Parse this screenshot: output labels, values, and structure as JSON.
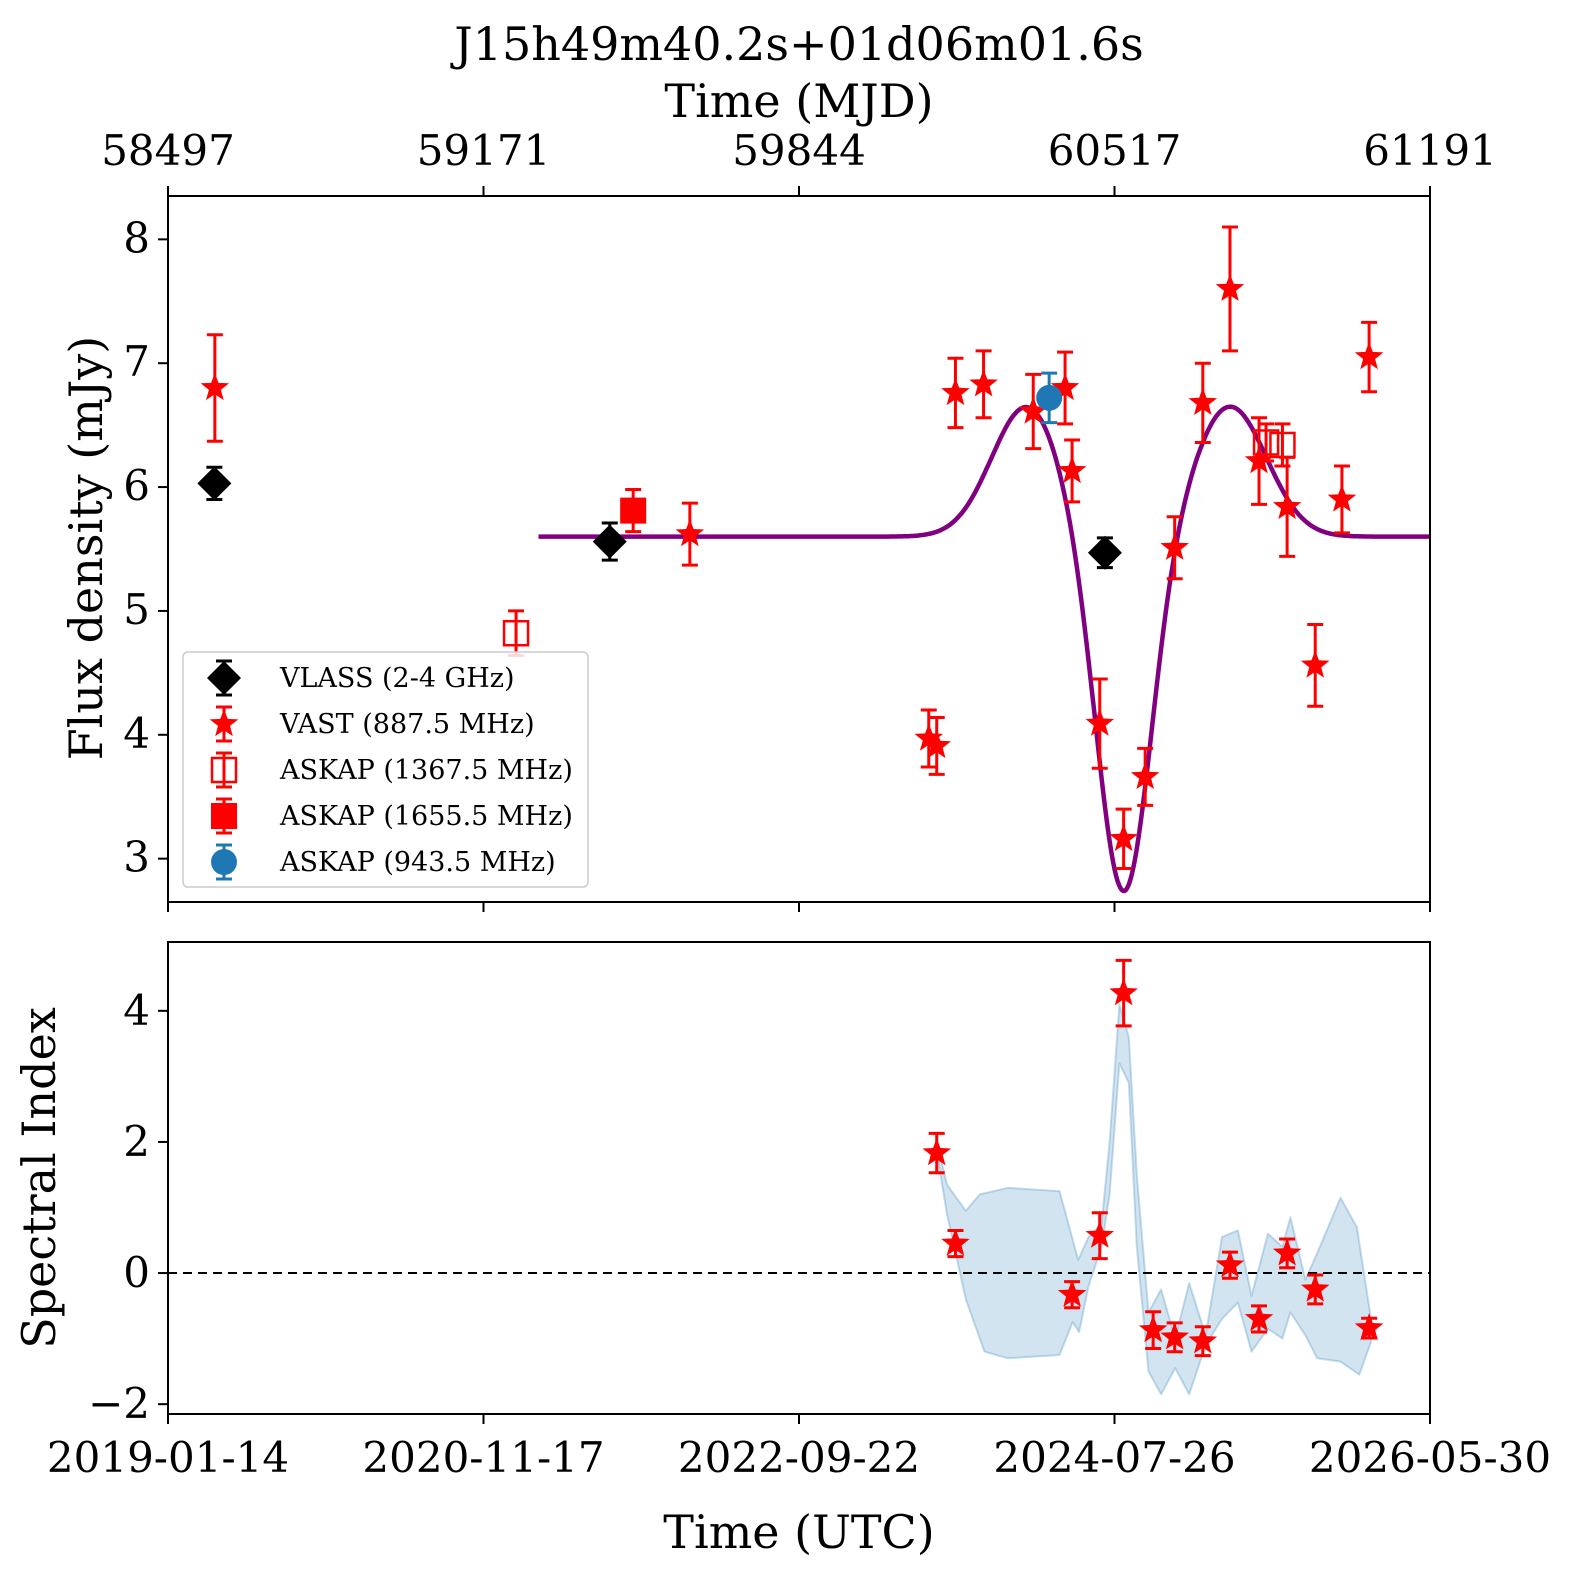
{
  "chart_data": [
    {
      "type": "scatter",
      "title": "J15h49m40.2s+01d06m01.6s",
      "top_axis_label": "Time (MJD)",
      "top_ticks": [
        "58497",
        "59171",
        "59844",
        "60517",
        "61191"
      ],
      "xlabel": "",
      "ylabel": "Flux density (mJy)",
      "x_ticks": [
        "",
        "",
        "",
        "",
        ""
      ],
      "y_ticks": [
        "3",
        "4",
        "5",
        "6",
        "7",
        "8"
      ],
      "ylim": [
        2.65,
        8.35
      ],
      "xlim_mjd": [
        58497,
        61191
      ],
      "legend_position": "lower-left",
      "series": [
        {
          "name": "VLASS (2-4 GHz)",
          "marker": "diamond",
          "color": "#000000",
          "points": [
            {
              "mjd": 58596,
              "y": 6.03,
              "err": 0.13
            },
            {
              "mjd": 59440,
              "y": 5.56,
              "err": 0.15
            },
            {
              "mjd": 60497,
              "y": 5.47,
              "err": 0.12
            }
          ]
        },
        {
          "name": "VAST (887.5 MHz)",
          "marker": "star",
          "color": "#ff0000",
          "points": [
            {
              "mjd": 58597,
              "y": 6.8,
              "err": 0.43
            },
            {
              "mjd": 59611,
              "y": 5.62,
              "err": 0.25
            },
            {
              "mjd": 60121,
              "y": 3.97,
              "err": 0.23
            },
            {
              "mjd": 60138,
              "y": 3.91,
              "err": 0.23
            },
            {
              "mjd": 60178,
              "y": 6.76,
              "err": 0.28
            },
            {
              "mjd": 60238,
              "y": 6.83,
              "err": 0.27
            },
            {
              "mjd": 60344,
              "y": 6.61,
              "err": 0.3
            },
            {
              "mjd": 60412,
              "y": 6.8,
              "err": 0.29
            },
            {
              "mjd": 60427,
              "y": 6.13,
              "err": 0.25
            },
            {
              "mjd": 60486,
              "y": 4.09,
              "err": 0.36
            },
            {
              "mjd": 60537,
              "y": 3.16,
              "err": 0.24
            },
            {
              "mjd": 60583,
              "y": 3.66,
              "err": 0.23
            },
            {
              "mjd": 60646,
              "y": 5.51,
              "err": 0.25
            },
            {
              "mjd": 60706,
              "y": 6.68,
              "err": 0.32
            },
            {
              "mjd": 60764,
              "y": 7.6,
              "err": 0.5
            },
            {
              "mjd": 60826,
              "y": 6.21,
              "err": 0.35
            },
            {
              "mjd": 60886,
              "y": 5.84,
              "err": 0.4
            },
            {
              "mjd": 60946,
              "y": 4.56,
              "err": 0.33
            },
            {
              "mjd": 61003,
              "y": 5.9,
              "err": 0.27
            },
            {
              "mjd": 61061,
              "y": 7.05,
              "err": 0.28
            }
          ]
        },
        {
          "name": "ASKAP (1367.5 MHz)",
          "marker": "square-open",
          "color": "#ff0000",
          "points": [
            {
              "mjd": 59240,
              "y": 4.82,
              "err": 0.18
            },
            {
              "mjd": 60841,
              "y": 6.36,
              "err": 0.15
            },
            {
              "mjd": 60876,
              "y": 6.34,
              "err": 0.17
            }
          ]
        },
        {
          "name": "ASKAP (1655.5 MHz)",
          "marker": "square",
          "color": "#ff0000",
          "points": [
            {
              "mjd": 59490,
              "y": 5.81,
              "err": 0.17
            }
          ]
        },
        {
          "name": "ASKAP (943.5 MHz)",
          "marker": "circle",
          "color": "#1f77b4",
          "points": [
            {
              "mjd": 60378,
              "y": 6.72,
              "err": 0.2
            }
          ]
        }
      ],
      "model_curve": {
        "color": "#800080",
        "baseline": 5.6,
        "x_start_mjd": 59288,
        "x_end_mjd": 61191,
        "components": [
          {
            "amp": 1.05,
            "center_mjd": 60330,
            "sigma": 75
          },
          {
            "amp": -2.9,
            "center_mjd": 60537,
            "sigma": 57
          },
          {
            "amp": 1.05,
            "center_mjd": 60764,
            "sigma": 78
          }
        ]
      }
    },
    {
      "type": "scatter",
      "xlabel": "Time (UTC)",
      "ylabel": "Spectral Index",
      "x_ticks": [
        "2019-01-14",
        "2020-11-17",
        "2022-09-22",
        "2024-07-26",
        "2026-05-30"
      ],
      "y_ticks": [
        "−2",
        "0",
        "2",
        "4"
      ],
      "ylim": [
        -2.15,
        5.05
      ],
      "xlim_mjd": [
        58497,
        61191
      ],
      "reference_line": {
        "y": 0,
        "style": "dashed",
        "color": "#000000"
      },
      "series": [
        {
          "marker": "star",
          "color": "#ff0000",
          "points": [
            {
              "mjd": 60138,
              "y": 1.83,
              "err": 0.3
            },
            {
              "mjd": 60178,
              "y": 0.45,
              "err": 0.2
            },
            {
              "mjd": 60427,
              "y": -0.33,
              "err": 0.2
            },
            {
              "mjd": 60486,
              "y": 0.57,
              "err": 0.35
            },
            {
              "mjd": 60537,
              "y": 4.27,
              "err": 0.5
            },
            {
              "mjd": 60600,
              "y": -0.87,
              "err": 0.28
            },
            {
              "mjd": 60646,
              "y": -0.98,
              "err": 0.22
            },
            {
              "mjd": 60706,
              "y": -1.04,
              "err": 0.22
            },
            {
              "mjd": 60764,
              "y": 0.12,
              "err": 0.2
            },
            {
              "mjd": 60826,
              "y": -0.7,
              "err": 0.2
            },
            {
              "mjd": 60886,
              "y": 0.3,
              "err": 0.22
            },
            {
              "mjd": 60946,
              "y": -0.25,
              "err": 0.22
            },
            {
              "mjd": 61061,
              "y": -0.84,
              "err": 0.15
            }
          ]
        }
      ],
      "uncertainty_band": {
        "color": "#1f77b4",
        "fill_opacity": 0.2,
        "upper": [
          [
            60138,
            2.0
          ],
          [
            60160,
            1.35
          ],
          [
            60200,
            0.95
          ],
          [
            60230,
            1.2
          ],
          [
            60290,
            1.3
          ],
          [
            60400,
            1.25
          ],
          [
            60440,
            0.2
          ],
          [
            60462,
            0.55
          ],
          [
            60490,
            0.75
          ],
          [
            60507,
            2.0
          ],
          [
            60528,
            4.1
          ],
          [
            60548,
            3.6
          ],
          [
            60565,
            1.5
          ],
          [
            60590,
            -0.6
          ],
          [
            60617,
            -0.25
          ],
          [
            60647,
            -1.0
          ],
          [
            60677,
            -0.15
          ],
          [
            60712,
            -0.95
          ],
          [
            60747,
            0.55
          ],
          [
            60781,
            0.65
          ],
          [
            60810,
            -0.35
          ],
          [
            60845,
            0.6
          ],
          [
            60876,
            0.4
          ],
          [
            60893,
            0.85
          ],
          [
            60925,
            -0.1
          ],
          [
            60950,
            0.3
          ],
          [
            61000,
            1.15
          ],
          [
            61035,
            0.7
          ],
          [
            61065,
            -0.7
          ]
        ],
        "lower": [
          [
            60138,
            1.85
          ],
          [
            60160,
            0.9
          ],
          [
            60200,
            -0.4
          ],
          [
            60240,
            -1.2
          ],
          [
            60290,
            -1.3
          ],
          [
            60400,
            -1.25
          ],
          [
            60428,
            -0.75
          ],
          [
            60442,
            -0.9
          ],
          [
            60462,
            -0.2
          ],
          [
            60490,
            0.4
          ],
          [
            60507,
            1.2
          ],
          [
            60528,
            3.2
          ],
          [
            60548,
            2.9
          ],
          [
            60565,
            0.4
          ],
          [
            60590,
            -1.5
          ],
          [
            60617,
            -1.85
          ],
          [
            60647,
            -1.45
          ],
          [
            60677,
            -1.85
          ],
          [
            60712,
            -1.1
          ],
          [
            60747,
            -0.7
          ],
          [
            60781,
            -0.45
          ],
          [
            60810,
            -1.2
          ],
          [
            60845,
            -0.85
          ],
          [
            60876,
            -1.0
          ],
          [
            60893,
            -0.6
          ],
          [
            60925,
            -0.95
          ],
          [
            60950,
            -1.3
          ],
          [
            61000,
            -1.35
          ],
          [
            61040,
            -1.55
          ],
          [
            61065,
            -1.05
          ]
        ]
      }
    }
  ]
}
